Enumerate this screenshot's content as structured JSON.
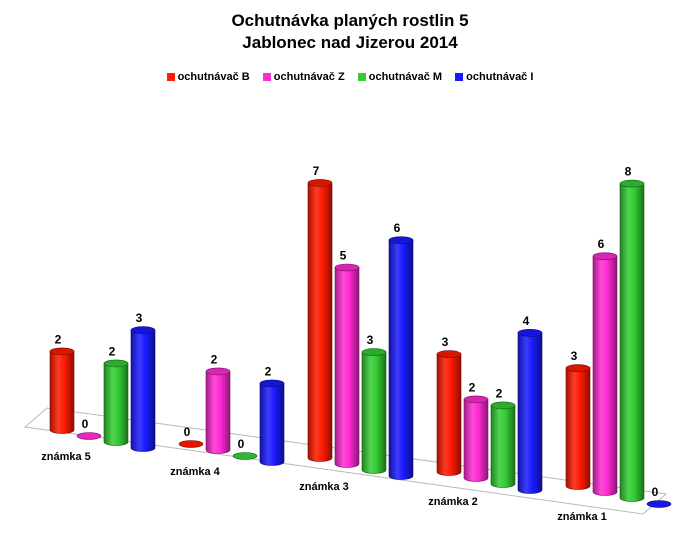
{
  "chart_data": {
    "type": "bar",
    "title": [
      "Ochutnávka planých rostlin 5",
      "Jablonec nad Jizerou 2014"
    ],
    "categories": [
      "známka 5",
      "známka 4",
      "známka 3",
      "známka 2",
      "známka 1"
    ],
    "series": [
      {
        "name": "ochutnávač B",
        "color": "#ff1a00",
        "values": [
          2,
          0,
          7,
          3,
          3
        ]
      },
      {
        "name": "ochutnávač Z",
        "color": "#ff2ad4",
        "values": [
          0,
          2,
          5,
          2,
          6
        ]
      },
      {
        "name": "ochutnávač M",
        "color": "#33cc33",
        "values": [
          2,
          0,
          3,
          2,
          8
        ]
      },
      {
        "name": "ochutnávač I",
        "color": "#1a1aff",
        "values": [
          3,
          2,
          6,
          4,
          0
        ]
      }
    ],
    "legend_position": "top",
    "data_labels": true,
    "grid": false,
    "style": "3d-cylinder"
  }
}
